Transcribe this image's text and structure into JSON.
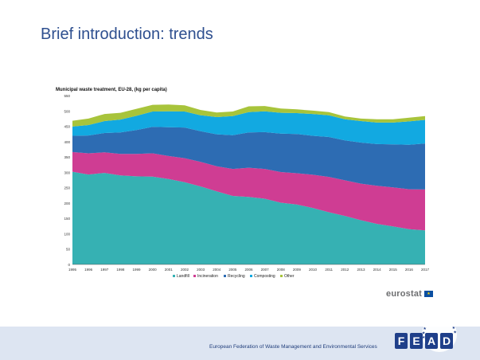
{
  "slide": {
    "title": "Brief introduction: trends",
    "footer_text": "European Federation of Waste Management and Environmental Services"
  },
  "logos": {
    "eurostat": "eurostat",
    "fead_letters": [
      "F",
      "E",
      "A",
      "D"
    ]
  },
  "colors": {
    "title": "#2e4f8f",
    "footer_band": "#dde5f2",
    "fead_blue": "#1f3f8a"
  },
  "chart_data": {
    "type": "area",
    "stacked": true,
    "title": "Municipal waste treatment, EU-28, (kg per capita)",
    "x": [
      "1995",
      "1996",
      "1997",
      "1998",
      "1999",
      "2000",
      "2001",
      "2002",
      "2003",
      "2004",
      "2005",
      "2006",
      "2007",
      "2008",
      "2009",
      "2010",
      "2011",
      "2012",
      "2013",
      "2014",
      "2015",
      "2016",
      "2017"
    ],
    "ylim": [
      0,
      550
    ],
    "yticks": [
      "0",
      "50",
      "100",
      "150",
      "200",
      "250",
      "300",
      "350",
      "400",
      "450",
      "500",
      "550"
    ],
    "grid": false,
    "legend_position": "bottom",
    "series": [
      {
        "name": "Landfill",
        "color": "#36b1b3",
        "values": [
          302,
          293,
          298,
          290,
          287,
          286,
          278,
          268,
          254,
          238,
          223,
          220,
          214,
          201,
          195,
          184,
          170,
          158,
          144,
          132,
          124,
          115,
          111
        ]
      },
      {
        "name": "Incineration",
        "color": "#cf3d93",
        "values": [
          64,
          69,
          67,
          70,
          73,
          76,
          75,
          78,
          80,
          82,
          88,
          95,
          97,
          100,
          102,
          108,
          115,
          116,
          119,
          124,
          127,
          130,
          133
        ]
      },
      {
        "name": "Recycling",
        "color": "#2d6cb3",
        "values": [
          53,
          58,
          63,
          70,
          78,
          86,
          94,
          100,
          100,
          104,
          110,
          115,
          120,
          125,
          128,
          127,
          130,
          130,
          134,
          136,
          140,
          145,
          150
        ]
      },
      {
        "name": "Composting",
        "color": "#12a9e1",
        "values": [
          30,
          34,
          39,
          42,
          46,
          50,
          52,
          52,
          52,
          56,
          62,
          66,
          68,
          68,
          68,
          71,
          71,
          69,
          70,
          70,
          71,
          76,
          77
        ]
      },
      {
        "name": "Other",
        "color": "#a8c43b",
        "values": [
          19,
          21,
          23,
          22,
          23,
          22,
          22,
          20,
          17,
          15,
          15,
          19,
          17,
          14,
          12,
          11,
          10,
          9,
          8,
          11,
          11,
          12,
          12
        ]
      }
    ]
  }
}
